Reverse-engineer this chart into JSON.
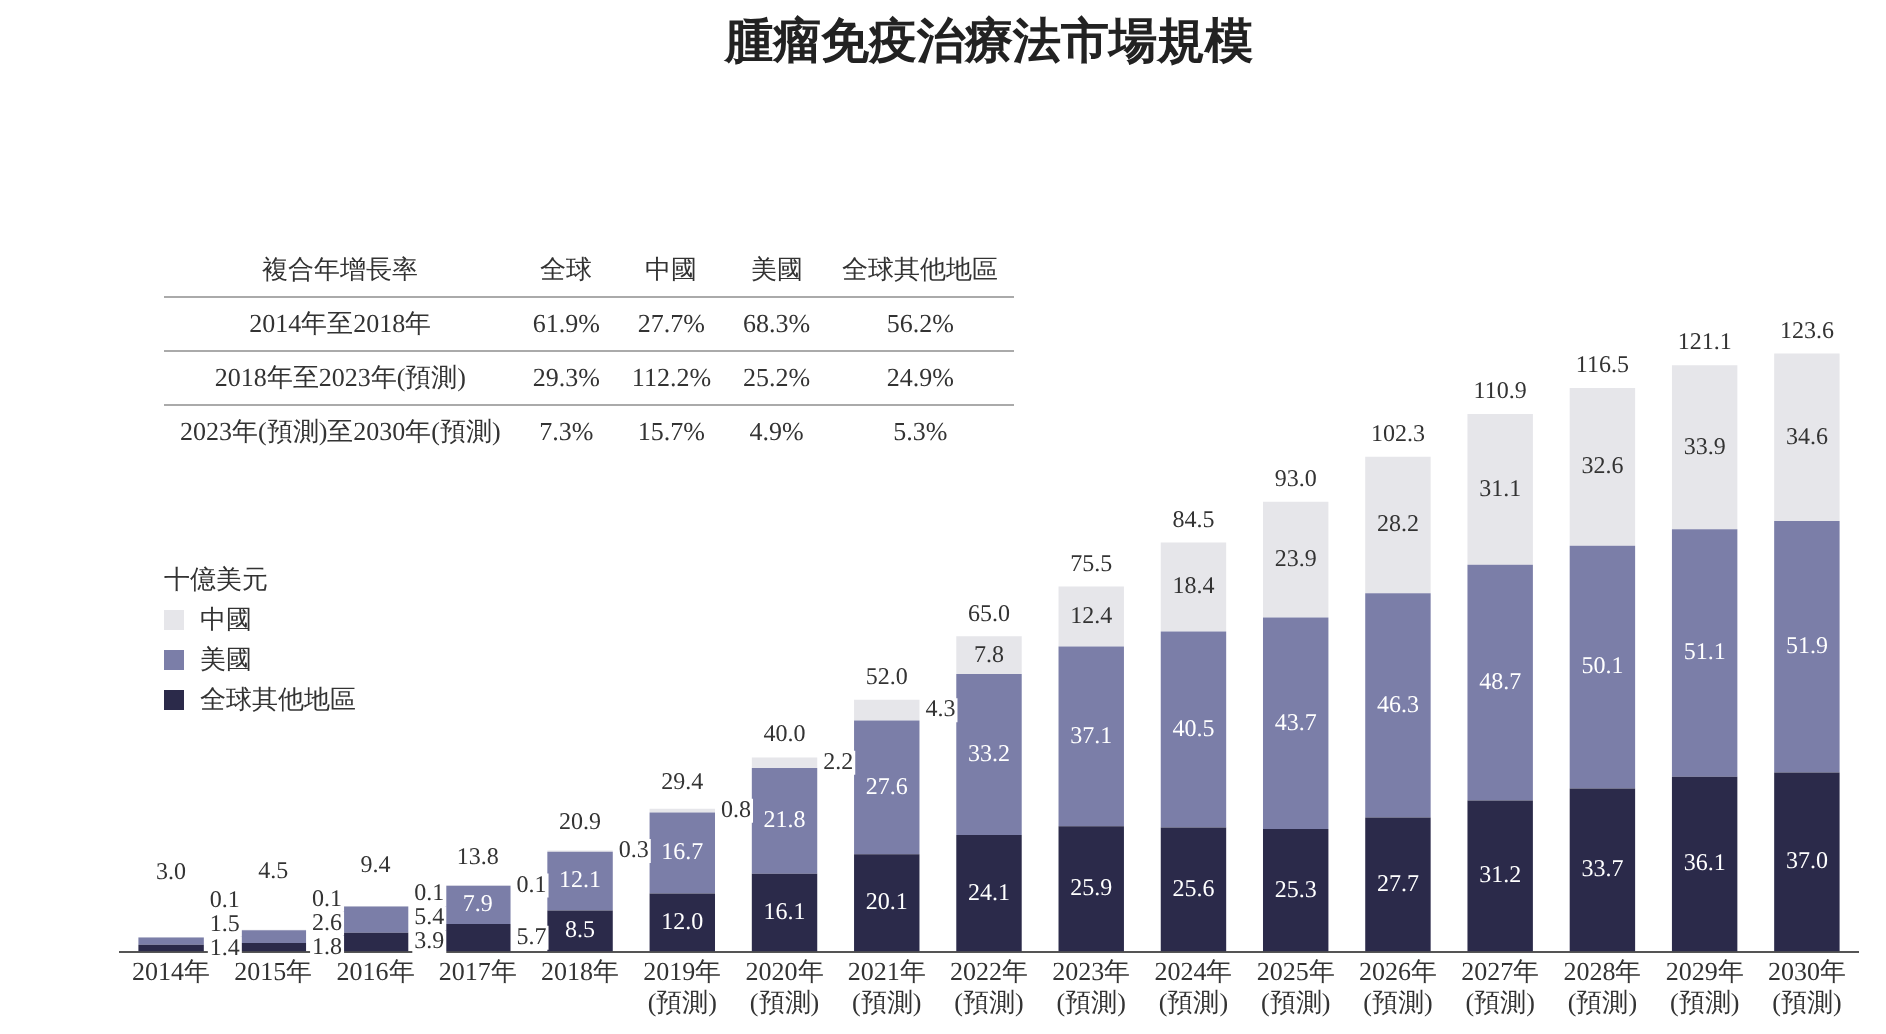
{
  "chart_data": {
    "type": "bar",
    "title": "腫瘤免疫治療法市場規模",
    "legend_title": "十億美元",
    "legend": "left",
    "stacked": true,
    "tick_labels": "x",
    "categories": [
      "2014年",
      "2015年",
      "2016年",
      "2017年",
      "2018年",
      "2019年\n(預測)",
      "2020年\n(預測)",
      "2021年\n(預測)",
      "2022年\n(預測)",
      "2023年\n(預測)",
      "2024年\n(預測)",
      "2025年\n(預測)",
      "2026年\n(預測)",
      "2027年\n(預測)",
      "2028年\n(預測)",
      "2029年\n(預測)",
      "2030年\n(預測)"
    ],
    "series": [
      {
        "name": "全球其他地區",
        "color": "#2b2a4a",
        "values": [
          1.4,
          1.8,
          3.9,
          5.7,
          8.5,
          12.0,
          16.1,
          20.1,
          24.1,
          25.9,
          25.6,
          25.3,
          27.7,
          31.2,
          33.7,
          36.1,
          37.0
        ],
        "value_labels": [
          "1.4",
          "1.8",
          "3.9",
          "5.7",
          "8.5",
          "12.0",
          "16.1",
          "20.1",
          "24.1",
          "25.9",
          "25.6",
          "25.3",
          "27.7",
          "31.2",
          "33.7",
          "36.1",
          "37.0"
        ]
      },
      {
        "name": "美國",
        "color": "#7b7ea8",
        "values": [
          1.5,
          2.6,
          5.4,
          7.9,
          12.1,
          16.7,
          21.8,
          27.6,
          33.2,
          37.1,
          40.5,
          43.7,
          46.3,
          48.7,
          50.1,
          51.1,
          51.9
        ],
        "value_labels": [
          "1.5",
          "2.6",
          "5.4",
          "7.9",
          "12.1",
          "16.7",
          "21.8",
          "27.6",
          "33.2",
          "37.1",
          "40.5",
          "43.7",
          "46.3",
          "48.7",
          "50.1",
          "51.1",
          "51.9"
        ]
      },
      {
        "name": "中國",
        "color": "#e6e6ea",
        "values": [
          0.1,
          0.1,
          0.1,
          0.1,
          0.3,
          0.8,
          2.2,
          4.3,
          7.8,
          12.4,
          18.4,
          23.9,
          28.2,
          31.1,
          32.6,
          33.9,
          34.6
        ],
        "value_labels": [
          "0.1",
          "0.1",
          "0.1",
          "0.1",
          "0.3",
          "0.8",
          "2.2",
          "4.3",
          "7.8",
          "12.4",
          "18.4",
          "23.9",
          "28.2",
          "31.1",
          "32.6",
          "33.9",
          "34.6"
        ]
      }
    ],
    "totals": [
      "3.0",
      "4.5",
      "9.4",
      "13.8",
      "20.9",
      "29.4",
      "40.0",
      "52.0",
      "65.0",
      "75.5",
      "84.5",
      "93.0",
      "102.3",
      "110.9",
      "116.5",
      "121.1",
      "123.6"
    ],
    "annotations": [
      "複合年增長率",
      "全球",
      "中國",
      "美國",
      "全球其他地區",
      "2014年至2018年",
      "61.9%",
      "27.7%",
      "68.3%",
      "56.2%",
      "2018年至2023年(預測)",
      "29.3%",
      "112.2%",
      "25.2%",
      "24.9%",
      "2023年(預測)至2030年(預測)",
      "7.3%",
      "15.7%",
      "4.9%",
      "5.3%"
    ]
  }
}
